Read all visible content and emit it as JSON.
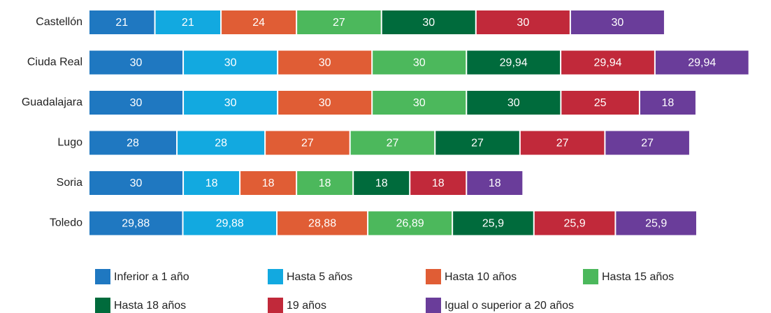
{
  "chart_data": {
    "type": "stacked-bar-horizontal",
    "categories": [
      "Castellón",
      "Ciuda Real",
      "Guadalajara",
      "Lugo",
      "Soria",
      "Toledo"
    ],
    "xlim": [
      0,
      215
    ],
    "series": [
      {
        "name": "Inferior a 1 año",
        "color": "#1f78c1",
        "values": [
          21,
          30,
          30,
          28,
          30,
          29.88
        ],
        "value_labels": [
          "21",
          "30",
          "30",
          "28",
          "30",
          "29,88"
        ]
      },
      {
        "name": "Hasta 5 años",
        "color": "#12a9e0",
        "values": [
          21,
          30,
          30,
          28,
          18,
          29.88
        ],
        "value_labels": [
          "21",
          "30",
          "30",
          "28",
          "18",
          "29,88"
        ]
      },
      {
        "name": "Hasta 10 años",
        "color": "#e05d35",
        "values": [
          24,
          30,
          30,
          27,
          18,
          28.88
        ],
        "value_labels": [
          "24",
          "30",
          "30",
          "27",
          "18",
          "28,88"
        ]
      },
      {
        "name": "Hasta 15 años",
        "color": "#4cb85c",
        "values": [
          27,
          30,
          30,
          27,
          18,
          26.89
        ],
        "value_labels": [
          "27",
          "30",
          "30",
          "27",
          "18",
          "26,89"
        ]
      },
      {
        "name": "Hasta 18 años",
        "color": "#006b3c",
        "values": [
          30,
          29.94,
          30,
          27,
          18,
          25.9
        ],
        "value_labels": [
          "30",
          "29,94",
          "30",
          "27",
          "18",
          "25,9"
        ]
      },
      {
        "name": "19 años",
        "color": "#c1293a",
        "values": [
          30,
          29.94,
          25,
          27,
          18,
          25.9
        ],
        "value_labels": [
          "30",
          "29,94",
          "25",
          "27",
          "18",
          "25,9"
        ]
      },
      {
        "name": "Igual o superior a 20 años",
        "color": "#6a3d9a",
        "values": [
          30,
          29.94,
          18,
          27,
          18,
          25.9
        ],
        "value_labels": [
          "30",
          "29,94",
          "18",
          "27",
          "18",
          "25,9"
        ]
      }
    ]
  }
}
